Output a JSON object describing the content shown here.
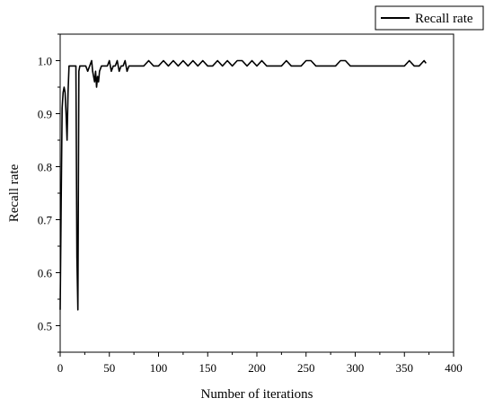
{
  "chart_data": {
    "type": "line",
    "title": "",
    "xlabel": "Number of iterations",
    "ylabel": "Recall rate",
    "xlim": [
      0,
      400
    ],
    "ylim": [
      0.45,
      1.05
    ],
    "x_ticks": [
      0,
      50,
      100,
      150,
      200,
      250,
      300,
      350,
      400
    ],
    "y_ticks": [
      0.5,
      0.6,
      0.7,
      0.8,
      0.9,
      1.0
    ],
    "x_tick_labels": [
      "0",
      "50",
      "100",
      "150",
      "200",
      "250",
      "300",
      "350",
      "400"
    ],
    "y_tick_labels": [
      "0.5",
      "0.6",
      "0.7",
      "0.8",
      "0.9",
      "1.0"
    ],
    "grid": false,
    "legend": {
      "position": "top-right",
      "entries": [
        "Recall rate"
      ]
    },
    "series": [
      {
        "name": "Recall rate",
        "color": "#000000",
        "x": [
          0,
          1,
          2,
          3,
          4,
          5,
          6,
          7,
          8,
          9,
          10,
          11,
          12,
          13,
          14,
          15,
          16,
          17,
          18,
          19,
          20,
          22,
          24,
          26,
          28,
          30,
          32,
          33,
          34,
          35,
          36,
          37,
          38,
          39,
          40,
          42,
          44,
          46,
          48,
          50,
          52,
          54,
          56,
          58,
          60,
          62,
          64,
          66,
          68,
          70,
          72,
          74,
          76,
          78,
          80,
          85,
          90,
          95,
          100,
          105,
          110,
          115,
          120,
          125,
          130,
          135,
          140,
          145,
          150,
          155,
          160,
          165,
          170,
          175,
          180,
          185,
          190,
          195,
          200,
          205,
          210,
          215,
          220,
          225,
          230,
          235,
          240,
          245,
          250,
          255,
          260,
          265,
          270,
          275,
          280,
          285,
          290,
          295,
          300,
          305,
          310,
          315,
          320,
          325,
          330,
          335,
          340,
          345,
          350,
          355,
          360,
          365,
          370,
          372
        ],
        "values": [
          0.53,
          0.73,
          0.91,
          0.94,
          0.95,
          0.94,
          0.9,
          0.85,
          0.94,
          0.99,
          0.99,
          0.99,
          0.99,
          0.99,
          0.99,
          0.99,
          0.99,
          0.63,
          0.53,
          0.98,
          0.99,
          0.99,
          0.99,
          0.99,
          0.98,
          0.99,
          1.0,
          0.98,
          0.97,
          0.96,
          0.98,
          0.95,
          0.97,
          0.96,
          0.98,
          0.99,
          0.99,
          0.99,
          0.99,
          1.0,
          0.98,
          0.99,
          0.99,
          1.0,
          0.98,
          0.99,
          0.99,
          1.0,
          0.98,
          0.99,
          0.99,
          0.99,
          0.99,
          0.99,
          0.99,
          0.99,
          1.0,
          0.99,
          0.99,
          1.0,
          0.99,
          1.0,
          0.99,
          1.0,
          0.99,
          1.0,
          0.99,
          1.0,
          0.99,
          0.99,
          1.0,
          0.99,
          1.0,
          0.99,
          1.0,
          1.0,
          0.99,
          1.0,
          0.99,
          1.0,
          0.99,
          0.99,
          0.99,
          0.99,
          1.0,
          0.99,
          0.99,
          0.99,
          1.0,
          1.0,
          0.99,
          0.99,
          0.99,
          0.99,
          0.99,
          1.0,
          1.0,
          0.99,
          0.99,
          0.99,
          0.99,
          0.99,
          0.99,
          0.99,
          0.99,
          0.99,
          0.99,
          0.99,
          0.99,
          1.0,
          0.99,
          0.99,
          1.0,
          0.995
        ]
      }
    ]
  }
}
